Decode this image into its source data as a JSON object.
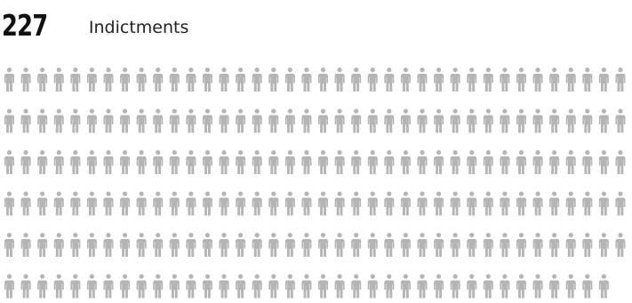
{
  "header": {
    "count": "227",
    "label": "Indictments"
  },
  "chart_data": {
    "type": "pictograph",
    "icon": "person-icon",
    "total": 227,
    "rows": [
      38,
      38,
      38,
      38,
      38,
      37
    ],
    "color": "#b5b5b5"
  }
}
